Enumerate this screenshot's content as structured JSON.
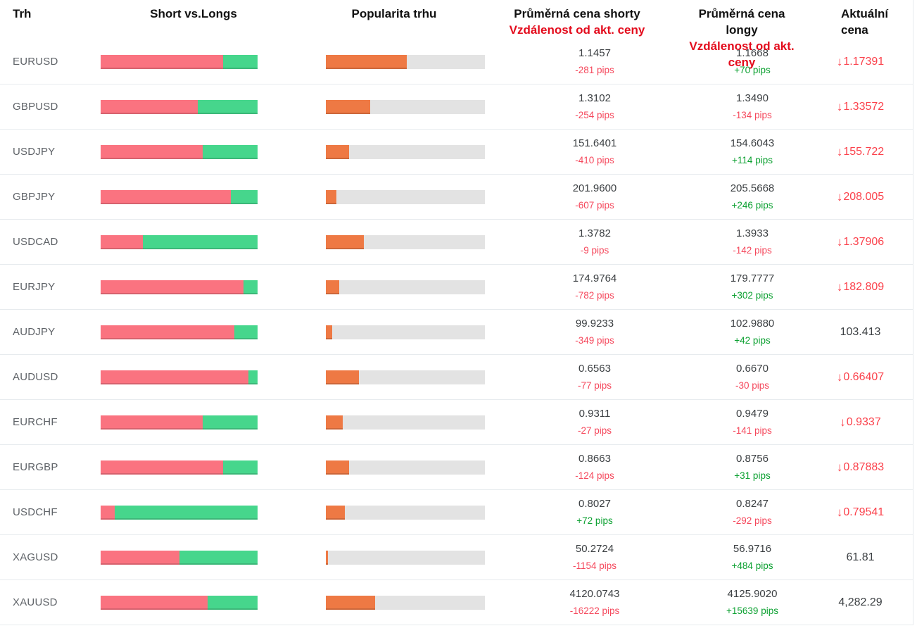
{
  "header": {
    "market": "Trh",
    "short_vs_longs": "Short vs.Longs",
    "popularity": "Popularita trhu",
    "avg_short_line1": "Průměrná cena shorty",
    "avg_short_line2": "Vzdálenost od akt. ceny",
    "avg_long_line1": "Průměrná cena longy",
    "avg_long_line2": "Vzdálenost od akt. ceny",
    "current_line1": "Aktuální",
    "current_line2": "cena"
  },
  "icons": {
    "down_arrow": "↓"
  },
  "colors": {
    "short_bar": "#fa7380",
    "long_bar": "#46d68c",
    "popularity_bar": "#ee7944",
    "track": "#e3e3e3",
    "pips_negative": "#f5485c",
    "pips_positive": "#0da132",
    "price_down": "#fb414b",
    "header_red": "#e30b1c",
    "text_black": "#111111",
    "text_dark": "#3c4043",
    "market_text": "#5f6368",
    "divider": "#e7ebee"
  },
  "rows": [
    {
      "market": "EURUSD",
      "short_pct": 78,
      "popularity_pct": 51,
      "short_price": "1.1457",
      "short_pips": "-281 pips",
      "long_price": "1.1668",
      "long_pips": "+70 pips",
      "current": "1.17391",
      "current_down": true
    },
    {
      "market": "GBPUSD",
      "short_pct": 62,
      "popularity_pct": 28,
      "short_price": "1.3102",
      "short_pips": "-254 pips",
      "long_price": "1.3490",
      "long_pips": "-134 pips",
      "current": "1.33572",
      "current_down": true
    },
    {
      "market": "USDJPY",
      "short_pct": 65,
      "popularity_pct": 14.5,
      "short_price": "151.6401",
      "short_pips": "-410 pips",
      "long_price": "154.6043",
      "long_pips": "+114 pips",
      "current": "155.722",
      "current_down": true
    },
    {
      "market": "GBPJPY",
      "short_pct": 83,
      "popularity_pct": 6.5,
      "short_price": "201.9600",
      "short_pips": "-607 pips",
      "long_price": "205.5668",
      "long_pips": "+246 pips",
      "current": "208.005",
      "current_down": true
    },
    {
      "market": "USDCAD",
      "short_pct": 27,
      "popularity_pct": 24,
      "short_price": "1.3782",
      "short_pips": "-9 pips",
      "long_price": "1.3933",
      "long_pips": "-142 pips",
      "current": "1.37906",
      "current_down": true
    },
    {
      "market": "EURJPY",
      "short_pct": 91,
      "popularity_pct": 8.5,
      "short_price": "174.9764",
      "short_pips": "-782 pips",
      "long_price": "179.7777",
      "long_pips": "+302 pips",
      "current": "182.809",
      "current_down": true
    },
    {
      "market": "AUDJPY",
      "short_pct": 85,
      "popularity_pct": 4,
      "short_price": "99.9233",
      "short_pips": "-349 pips",
      "long_price": "102.9880",
      "long_pips": "+42 pips",
      "current": "103.413",
      "current_down": false
    },
    {
      "market": "AUDUSD",
      "short_pct": 94,
      "popularity_pct": 21,
      "short_price": "0.6563",
      "short_pips": "-77 pips",
      "long_price": "0.6670",
      "long_pips": "-30 pips",
      "current": "0.66407",
      "current_down": true
    },
    {
      "market": "EURCHF",
      "short_pct": 65,
      "popularity_pct": 10.5,
      "short_price": "0.9311",
      "short_pips": "-27 pips",
      "long_price": "0.9479",
      "long_pips": "-141 pips",
      "current": "0.9337",
      "current_down": true
    },
    {
      "market": "EURGBP",
      "short_pct": 78,
      "popularity_pct": 14.5,
      "short_price": "0.8663",
      "short_pips": "-124 pips",
      "long_price": "0.8756",
      "long_pips": "+31 pips",
      "current": "0.87883",
      "current_down": true
    },
    {
      "market": "USDCHF",
      "short_pct": 9,
      "popularity_pct": 12,
      "short_price": "0.8027",
      "short_pips": "+72 pips",
      "long_price": "0.8247",
      "long_pips": "-292 pips",
      "current": "0.79541",
      "current_down": true
    },
    {
      "market": "XAGUSD",
      "short_pct": 50,
      "popularity_pct": 1.3,
      "short_price": "50.2724",
      "short_pips": "-1154 pips",
      "long_price": "56.9716",
      "long_pips": "+484 pips",
      "current": "61.81",
      "current_down": false
    },
    {
      "market": "XAUUSD",
      "short_pct": 68,
      "popularity_pct": 31,
      "short_price": "4120.0743",
      "short_pips": "-16222 pips",
      "long_price": "4125.9020",
      "long_pips": "+15639 pips",
      "current": "4,282.29",
      "current_down": false
    }
  ]
}
